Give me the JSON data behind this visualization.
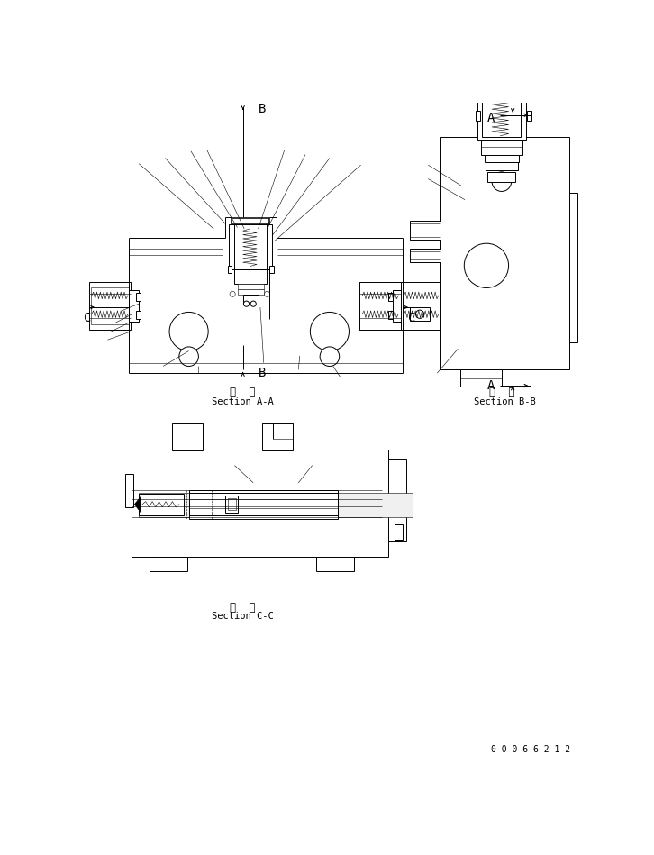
{
  "bg_color": "#ffffff",
  "lc": "#000000",
  "lw": 0.7,
  "tlw": 0.4,
  "thw": 1.1,
  "section_aa_cn": "断  面",
  "section_aa_en": "Section A-A",
  "section_bb_cn": "断  面",
  "section_bb_en": "Section B-B",
  "section_cc_cn": "断  面",
  "section_cc_en": "Section C-C",
  "part_number": "0 0 0 6 6 2 1 2",
  "label_fs": 8.5,
  "section_fs": 7.5,
  "part_fs": 7.0,
  "letter_fs": 10
}
